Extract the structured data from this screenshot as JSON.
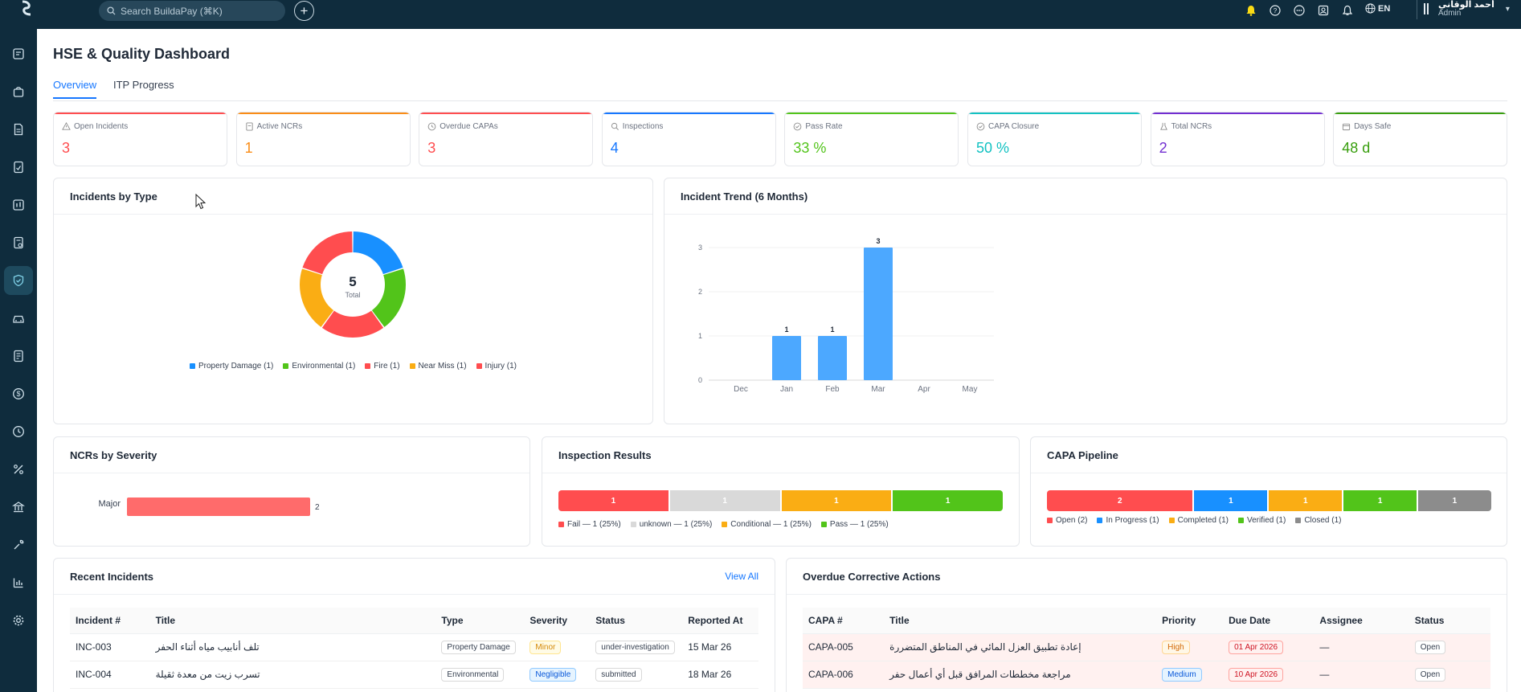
{
  "app": {
    "search_placeholder": "Search BuildaPay (⌘K)",
    "lang": "EN",
    "user_name": "أحمد الوقاني",
    "user_role": "Admin"
  },
  "page": {
    "title": "HSE & Quality Dashboard",
    "tabs": [
      {
        "label": "Overview",
        "active": true
      },
      {
        "label": "ITP Progress",
        "active": false
      }
    ]
  },
  "kpis": [
    {
      "label": "Open Incidents",
      "value": "3",
      "color": "#ff4d4f",
      "icon": "warning-icon"
    },
    {
      "label": "Active NCRs",
      "value": "1",
      "color": "#fa8c16",
      "icon": "document-icon"
    },
    {
      "label": "Overdue CAPAs",
      "value": "3",
      "color": "#ff4d4f",
      "icon": "clock-icon"
    },
    {
      "label": "Inspections",
      "value": "4",
      "color": "#1677ff",
      "icon": "search-icon"
    },
    {
      "label": "Pass Rate",
      "value": "33 %",
      "color": "#52c41a",
      "icon": "check-circle-icon"
    },
    {
      "label": "CAPA Closure",
      "value": "50 %",
      "color": "#13c2c2",
      "icon": "check-circle-icon"
    },
    {
      "label": "Total NCRs",
      "value": "2",
      "color": "#722ed1",
      "icon": "flask-icon"
    },
    {
      "label": "Days Safe",
      "value": "48 d",
      "color": "#389e0d",
      "icon": "calendar-icon"
    }
  ],
  "incidents_by_type": {
    "title": "Incidents by Type",
    "total": "5",
    "total_label": "Total",
    "chart_data": {
      "type": "pie",
      "slices": [
        {
          "name": "Property Damage (1)",
          "value": 1,
          "color": "#1890ff"
        },
        {
          "name": "Environmental (1)",
          "value": 1,
          "color": "#52c41a"
        },
        {
          "name": "Fire (1)",
          "value": 1,
          "color": "#ff4d4f"
        },
        {
          "name": "Near Miss (1)",
          "value": 1,
          "color": "#faad14"
        },
        {
          "name": "Injury (1)",
          "value": 1,
          "color": "#ff4d4f"
        }
      ]
    }
  },
  "incident_trend": {
    "title": "Incident Trend (6 Months)",
    "chart_data": {
      "type": "bar",
      "categories": [
        "Dec",
        "Jan",
        "Feb",
        "Mar",
        "Apr",
        "May"
      ],
      "values": [
        0,
        1,
        1,
        3,
        0,
        0
      ],
      "ylim": [
        0,
        3
      ],
      "yticks": [
        "0",
        "1",
        "2",
        "3"
      ],
      "color": "#4ca8ff",
      "grid": true
    }
  },
  "ncrs_by_severity": {
    "title": "NCRs by Severity",
    "chart_data": {
      "type": "bar",
      "orientation": "horizontal",
      "categories": [
        "Major"
      ],
      "values": [
        2
      ],
      "color": "#ff6b6b"
    }
  },
  "inspection_results": {
    "title": "Inspection Results",
    "segments": [
      {
        "value": "1",
        "legend": "Fail — 1 (25%)",
        "color": "#ff4d4f",
        "fraction": 0.25
      },
      {
        "value": "1",
        "legend": "unknown — 1 (25%)",
        "color": "#d9d9d9",
        "fraction": 0.25
      },
      {
        "value": "1",
        "legend": "Conditional — 1 (25%)",
        "color": "#faad14",
        "fraction": 0.25
      },
      {
        "value": "1",
        "legend": "Pass — 1 (25%)",
        "color": "#52c41a",
        "fraction": 0.25
      }
    ]
  },
  "capa_pipeline": {
    "title": "CAPA Pipeline",
    "segments": [
      {
        "value": "2",
        "legend": "Open (2)",
        "color": "#ff4d4f",
        "fraction": 0.333
      },
      {
        "value": "1",
        "legend": "In Progress (1)",
        "color": "#1890ff",
        "fraction": 0.1667
      },
      {
        "value": "1",
        "legend": "Completed (1)",
        "color": "#faad14",
        "fraction": 0.1667
      },
      {
        "value": "1",
        "legend": "Verified (1)",
        "color": "#52c41a",
        "fraction": 0.1667
      },
      {
        "value": "1",
        "legend": "Closed (1)",
        "color": "#8c8c8c",
        "fraction": 0.1667
      }
    ]
  },
  "recent_incidents": {
    "title": "Recent Incidents",
    "view_all": "View All",
    "columns": [
      "Incident #",
      "Title",
      "Type",
      "Severity",
      "Status",
      "Reported At"
    ],
    "rows": [
      {
        "id": "INC-003",
        "title": "تلف أنابيب مياه أثناء الحفر",
        "type": "Property Damage",
        "severity": "Minor",
        "status": "under-investigation",
        "reported": "15 Mar 26"
      },
      {
        "id": "INC-004",
        "title": "تسرب زيت من معدة ثقيلة",
        "type": "Environmental",
        "severity": "Negligible",
        "status": "submitted",
        "reported": "18 Mar 26"
      }
    ]
  },
  "overdue_actions": {
    "title": "Overdue Corrective Actions",
    "columns": [
      "CAPA #",
      "Title",
      "Priority",
      "Due Date",
      "Assignee",
      "Status"
    ],
    "rows": [
      {
        "id": "CAPA-005",
        "title": "إعادة تطبيق العزل المائي في المناطق المتضررة",
        "priority": "High",
        "due": "01 Apr 2026",
        "assignee": "—",
        "status": "Open"
      },
      {
        "id": "CAPA-006",
        "title": "مراجعة مخططات المرافق قبل أي أعمال حفر",
        "priority": "Medium",
        "due": "10 Apr 2026",
        "assignee": "—",
        "status": "Open"
      }
    ]
  }
}
